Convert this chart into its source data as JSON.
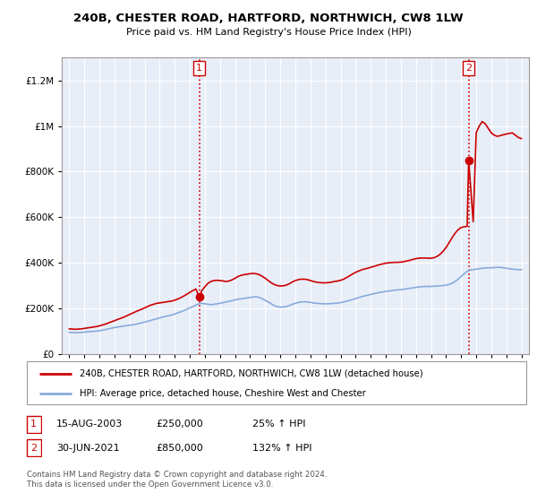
{
  "title": "240B, CHESTER ROAD, HARTFORD, NORTHWICH, CW8 1LW",
  "subtitle": "Price paid vs. HM Land Registry's House Price Index (HPI)",
  "legend_line1": "240B, CHESTER ROAD, HARTFORD, NORTHWICH, CW8 1LW (detached house)",
  "legend_line2": "HPI: Average price, detached house, Cheshire West and Chester",
  "footnote": "Contains HM Land Registry data © Crown copyright and database right 2024.\nThis data is licensed under the Open Government Licence v3.0.",
  "sale1_label": "1",
  "sale1_date": "15-AUG-2003",
  "sale1_price": "£250,000",
  "sale1_hpi": "25% ↑ HPI",
  "sale2_label": "2",
  "sale2_date": "30-JUN-2021",
  "sale2_price": "£850,000",
  "sale2_hpi": "132% ↑ HPI",
  "ylim": [
    0,
    1300000
  ],
  "yticks": [
    0,
    200000,
    400000,
    600000,
    800000,
    1000000,
    1200000
  ],
  "xlim_start": 1994.5,
  "xlim_end": 2025.5,
  "sale_color": "#cc0000",
  "hpi_color": "#88aadd",
  "plot_bg": "#e8eef8",
  "grid_color": "#ffffff",
  "sale1_x": 2003.62,
  "sale2_x": 2021.5,
  "hpi_years": [
    1995.0,
    1995.2,
    1995.4,
    1995.6,
    1995.8,
    1996.0,
    1996.2,
    1996.4,
    1996.6,
    1996.8,
    1997.0,
    1997.2,
    1997.4,
    1997.6,
    1997.8,
    1998.0,
    1998.2,
    1998.4,
    1998.6,
    1998.8,
    1999.0,
    1999.2,
    1999.4,
    1999.6,
    1999.8,
    2000.0,
    2000.2,
    2000.4,
    2000.6,
    2000.8,
    2001.0,
    2001.2,
    2001.4,
    2001.6,
    2001.8,
    2002.0,
    2002.2,
    2002.4,
    2002.6,
    2002.8,
    2003.0,
    2003.2,
    2003.4,
    2003.6,
    2003.8,
    2004.0,
    2004.2,
    2004.4,
    2004.6,
    2004.8,
    2005.0,
    2005.2,
    2005.4,
    2005.6,
    2005.8,
    2006.0,
    2006.2,
    2006.4,
    2006.6,
    2006.8,
    2007.0,
    2007.2,
    2007.4,
    2007.6,
    2007.8,
    2008.0,
    2008.2,
    2008.4,
    2008.6,
    2008.8,
    2009.0,
    2009.2,
    2009.4,
    2009.6,
    2009.8,
    2010.0,
    2010.2,
    2010.4,
    2010.6,
    2010.8,
    2011.0,
    2011.2,
    2011.4,
    2011.6,
    2011.8,
    2012.0,
    2012.2,
    2012.4,
    2012.6,
    2012.8,
    2013.0,
    2013.2,
    2013.4,
    2013.6,
    2013.8,
    2014.0,
    2014.2,
    2014.4,
    2014.6,
    2014.8,
    2015.0,
    2015.2,
    2015.4,
    2015.6,
    2015.8,
    2016.0,
    2016.2,
    2016.4,
    2016.6,
    2016.8,
    2017.0,
    2017.2,
    2017.4,
    2017.6,
    2017.8,
    2018.0,
    2018.2,
    2018.4,
    2018.6,
    2018.8,
    2019.0,
    2019.2,
    2019.4,
    2019.6,
    2019.8,
    2020.0,
    2020.2,
    2020.4,
    2020.6,
    2020.8,
    2021.0,
    2021.2,
    2021.4,
    2021.6,
    2021.8,
    2022.0,
    2022.2,
    2022.4,
    2022.6,
    2022.8,
    2023.0,
    2023.2,
    2023.4,
    2023.6,
    2023.8,
    2024.0,
    2024.2,
    2024.4,
    2024.6,
    2024.8,
    2025.0
  ],
  "hpi_values": [
    95000,
    94000,
    93000,
    93500,
    94000,
    96000,
    97000,
    98000,
    99000,
    100000,
    102000,
    104000,
    107000,
    110000,
    113000,
    116000,
    118000,
    120000,
    122000,
    124000,
    126000,
    128000,
    130000,
    133000,
    136000,
    140000,
    143000,
    147000,
    151000,
    154000,
    158000,
    162000,
    165000,
    168000,
    171000,
    175000,
    180000,
    185000,
    190000,
    196000,
    202000,
    208000,
    214000,
    220000,
    222000,
    220000,
    218000,
    216000,
    218000,
    220000,
    222000,
    225000,
    228000,
    231000,
    234000,
    237000,
    240000,
    242000,
    244000,
    246000,
    248000,
    250000,
    251000,
    248000,
    242000,
    235000,
    228000,
    220000,
    212000,
    208000,
    205000,
    206000,
    208000,
    212000,
    218000,
    222000,
    226000,
    228000,
    229000,
    228000,
    226000,
    224000,
    222000,
    221000,
    220000,
    220000,
    220000,
    221000,
    222000,
    223000,
    225000,
    228000,
    231000,
    235000,
    239000,
    243000,
    247000,
    251000,
    255000,
    258000,
    261000,
    264000,
    267000,
    270000,
    272000,
    274000,
    276000,
    278000,
    280000,
    281000,
    282000,
    284000,
    286000,
    288000,
    290000,
    292000,
    294000,
    295000,
    296000,
    296000,
    296000,
    297000,
    298000,
    299000,
    300000,
    302000,
    305000,
    310000,
    318000,
    328000,
    340000,
    352000,
    362000,
    368000,
    370000,
    372000,
    374000,
    376000,
    377000,
    378000,
    378000,
    379000,
    380000,
    380000,
    378000,
    376000,
    374000,
    372000,
    371000,
    370000,
    370000
  ],
  "sale_years": [
    1995.0,
    1995.2,
    1995.4,
    1995.6,
    1995.8,
    1996.0,
    1996.2,
    1996.4,
    1996.6,
    1996.8,
    1997.0,
    1997.2,
    1997.4,
    1997.6,
    1997.8,
    1998.0,
    1998.2,
    1998.4,
    1998.6,
    1998.8,
    1999.0,
    1999.2,
    1999.4,
    1999.6,
    1999.8,
    2000.0,
    2000.2,
    2000.4,
    2000.6,
    2000.8,
    2001.0,
    2001.2,
    2001.4,
    2001.6,
    2001.8,
    2002.0,
    2002.2,
    2002.4,
    2002.6,
    2002.8,
    2003.0,
    2003.2,
    2003.4,
    2003.62,
    2003.8,
    2004.0,
    2004.2,
    2004.4,
    2004.6,
    2004.8,
    2005.0,
    2005.2,
    2005.4,
    2005.6,
    2005.8,
    2006.0,
    2006.2,
    2006.4,
    2006.6,
    2006.8,
    2007.0,
    2007.2,
    2007.4,
    2007.6,
    2007.8,
    2008.0,
    2008.2,
    2008.4,
    2008.6,
    2008.8,
    2009.0,
    2009.2,
    2009.4,
    2009.6,
    2009.8,
    2010.0,
    2010.2,
    2010.4,
    2010.6,
    2010.8,
    2011.0,
    2011.2,
    2011.4,
    2011.6,
    2011.8,
    2012.0,
    2012.2,
    2012.4,
    2012.6,
    2012.8,
    2013.0,
    2013.2,
    2013.4,
    2013.6,
    2013.8,
    2014.0,
    2014.2,
    2014.4,
    2014.6,
    2014.8,
    2015.0,
    2015.2,
    2015.4,
    2015.6,
    2015.8,
    2016.0,
    2016.2,
    2016.4,
    2016.6,
    2016.8,
    2017.0,
    2017.2,
    2017.4,
    2017.6,
    2017.8,
    2018.0,
    2018.2,
    2018.4,
    2018.6,
    2018.8,
    2019.0,
    2019.2,
    2019.4,
    2019.6,
    2019.8,
    2020.0,
    2020.2,
    2020.4,
    2020.6,
    2020.8,
    2021.0,
    2021.2,
    2021.4,
    2021.5,
    2021.8,
    2022.0,
    2022.2,
    2022.4,
    2022.6,
    2022.8,
    2023.0,
    2023.2,
    2023.4,
    2023.6,
    2023.8,
    2024.0,
    2024.2,
    2024.4,
    2024.6,
    2024.8,
    2025.0
  ],
  "sale_values": [
    110000,
    109000,
    108000,
    109000,
    110000,
    112000,
    114000,
    116000,
    118000,
    120000,
    123000,
    127000,
    131000,
    136000,
    141000,
    146000,
    151000,
    156000,
    161000,
    167000,
    173000,
    179000,
    185000,
    191000,
    196000,
    202000,
    208000,
    214000,
    218000,
    222000,
    224000,
    226000,
    228000,
    230000,
    232000,
    236000,
    241000,
    247000,
    254000,
    262000,
    270000,
    278000,
    285000,
    250000,
    278000,
    295000,
    310000,
    318000,
    322000,
    323000,
    322000,
    320000,
    318000,
    320000,
    325000,
    332000,
    340000,
    345000,
    348000,
    350000,
    352000,
    353000,
    352000,
    348000,
    341000,
    332000,
    322000,
    312000,
    305000,
    300000,
    298000,
    299000,
    302000,
    308000,
    316000,
    322000,
    326000,
    328000,
    328000,
    326000,
    322000,
    318000,
    315000,
    313000,
    312000,
    312000,
    313000,
    315000,
    318000,
    320000,
    323000,
    328000,
    335000,
    343000,
    351000,
    358000,
    364000,
    369000,
    373000,
    376000,
    380000,
    384000,
    388000,
    392000,
    395000,
    398000,
    400000,
    401000,
    402000,
    402000,
    403000,
    405000,
    408000,
    411000,
    415000,
    418000,
    420000,
    421000,
    421000,
    420000,
    420000,
    422000,
    428000,
    437000,
    450000,
    467000,
    488000,
    510000,
    530000,
    545000,
    555000,
    558000,
    560000,
    850000,
    580000,
    970000,
    1000000,
    1020000,
    1010000,
    990000,
    970000,
    960000,
    955000,
    958000,
    962000,
    965000,
    968000,
    970000,
    960000,
    950000,
    945000
  ]
}
